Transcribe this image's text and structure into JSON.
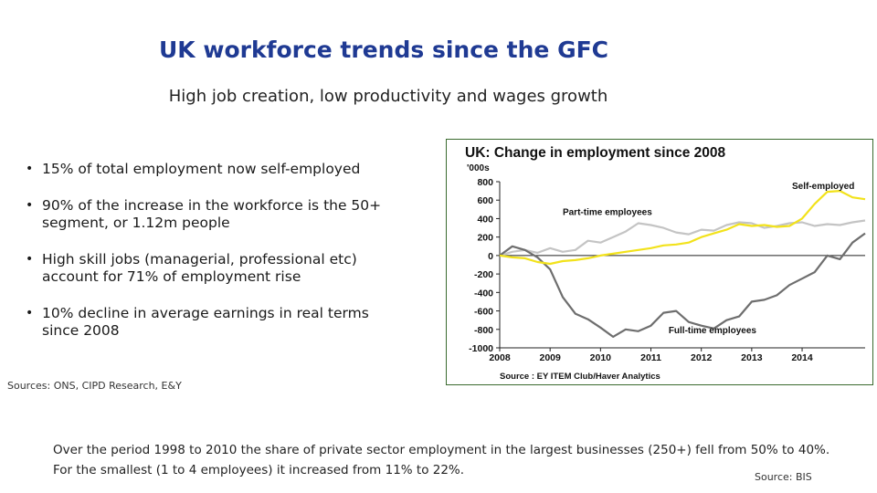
{
  "slide": {
    "title": "UK workforce trends since the GFC",
    "subtitle": "High job creation, low productivity and wages growth",
    "bullets": [
      "15% of total employment now self-employed",
      "90% of the increase in the workforce is the 50+ segment, or 1.12m people",
      "High skill jobs (managerial, professional etc) account for 71% of employment rise",
      "10% decline in average earnings in real terms since 2008"
    ],
    "sources_left": "Sources: ONS, CIPD Research, E&Y",
    "footer": "Over  the period 1998 to 2010 the share of private sector employment in the largest businesses (250+) fell from 50% to 40%. For the smallest (1 to 4 employees) it increased from 11% to 22%.",
    "source_right": "Source: BIS"
  },
  "chart_data": {
    "type": "line",
    "title": "UK: Change in employment since 2008",
    "ylabel": "'000s",
    "source": "Source : EY ITEM Club/Haver Analytics",
    "xlim": [
      2008.0,
      2015.25
    ],
    "ylim": [
      -1000,
      800
    ],
    "xticks": [
      "2008",
      "2009",
      "2010",
      "2011",
      "2012",
      "2013",
      "2014"
    ],
    "yticks": [
      "800",
      "600",
      "400",
      "200",
      "0",
      "-200",
      "-400",
      "-600",
      "-800",
      "-1000"
    ],
    "grid": false,
    "colors": {
      "self_employed": "#f2e21b",
      "part_time": "#c4c4c4",
      "full_time": "#6e6e6e",
      "frame": "#3a6a2e"
    },
    "series": [
      {
        "name": "Self-employed",
        "x": [
          2008.0,
          2008.25,
          2008.5,
          2008.75,
          2009.0,
          2009.25,
          2009.5,
          2009.75,
          2010.0,
          2010.25,
          2010.5,
          2010.75,
          2011.0,
          2011.25,
          2011.5,
          2011.75,
          2012.0,
          2012.25,
          2012.5,
          2012.75,
          2013.0,
          2013.25,
          2013.5,
          2013.75,
          2014.0,
          2014.25,
          2014.5,
          2014.75,
          2015.0,
          2015.25
        ],
        "y": [
          0,
          -20,
          -30,
          -70,
          -90,
          -60,
          -50,
          -30,
          0,
          20,
          40,
          60,
          80,
          110,
          120,
          140,
          200,
          240,
          280,
          340,
          320,
          330,
          310,
          320,
          400,
          560,
          690,
          700,
          630,
          610
        ]
      },
      {
        "name": "Part-time employees",
        "x": [
          2008.0,
          2008.25,
          2008.5,
          2008.75,
          2009.0,
          2009.25,
          2009.5,
          2009.75,
          2010.0,
          2010.25,
          2010.5,
          2010.75,
          2011.0,
          2011.25,
          2011.5,
          2011.75,
          2012.0,
          2012.25,
          2012.5,
          2012.75,
          2013.0,
          2013.25,
          2013.5,
          2013.75,
          2014.0,
          2014.25,
          2014.5,
          2014.75,
          2015.0,
          2015.25
        ],
        "y": [
          0,
          40,
          60,
          30,
          80,
          40,
          60,
          160,
          140,
          200,
          260,
          350,
          330,
          300,
          250,
          230,
          280,
          270,
          330,
          360,
          350,
          300,
          320,
          350,
          360,
          320,
          340,
          330,
          360,
          380
        ]
      },
      {
        "name": "Full-time employees",
        "x": [
          2008.0,
          2008.25,
          2008.5,
          2008.75,
          2009.0,
          2009.25,
          2009.5,
          2009.75,
          2010.0,
          2010.25,
          2010.5,
          2010.75,
          2011.0,
          2011.25,
          2011.5,
          2011.75,
          2012.0,
          2012.25,
          2012.5,
          2012.75,
          2013.0,
          2013.25,
          2013.5,
          2013.75,
          2014.0,
          2014.25,
          2014.5,
          2014.75,
          2015.0,
          2015.25
        ],
        "y": [
          0,
          100,
          60,
          -20,
          -150,
          -450,
          -630,
          -690,
          -780,
          -880,
          -800,
          -820,
          -760,
          -620,
          -600,
          -720,
          -760,
          -790,
          -700,
          -660,
          -500,
          -480,
          -430,
          -320,
          -250,
          -180,
          0,
          -40,
          140,
          240
        ]
      }
    ],
    "annotations": [
      "Self-employed",
      "Part-time employees",
      "Full-time employees"
    ]
  }
}
